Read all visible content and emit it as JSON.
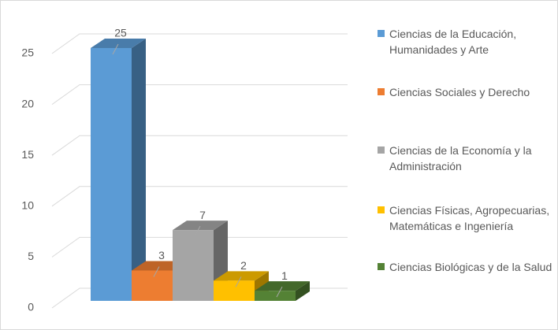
{
  "chart_data": {
    "type": "bar3d",
    "series": [
      {
        "name": "Ciencias de la Educación, Humanidades y Arte",
        "color": "#5b9bd5",
        "values": [
          25
        ]
      },
      {
        "name": "Ciencias Sociales y Derecho",
        "color": "#ed7d31",
        "values": [
          3
        ]
      },
      {
        "name": "Ciencias de la Economía y la Administración",
        "color": "#a5a5a5",
        "values": [
          7
        ]
      },
      {
        "name": "Ciencias Físicas, Agropecuarias, Matemáticas e Ingeniería",
        "color": "#ffc000",
        "values": [
          2
        ]
      },
      {
        "name": "Ciencias Biológicas y de la Salud",
        "color": "#548235",
        "values": [
          1
        ]
      }
    ],
    "ylim": [
      0,
      25
    ],
    "yticks": [
      0,
      5,
      10,
      15,
      20,
      25
    ],
    "grid": true,
    "legend": "right",
    "data_labels": true
  }
}
